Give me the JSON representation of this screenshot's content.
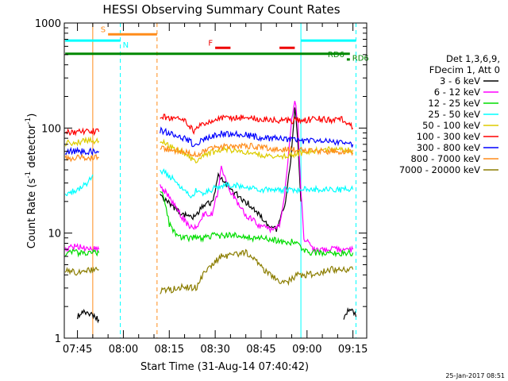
{
  "chart_data": {
    "type": "line",
    "title": "HESSI Observing Summary Count Rates",
    "xlabel": "Start Time (31-Aug-14 07:40:42)",
    "ylabel": "Count Rate (s",
    "ylabel_sup1": "-1",
    "ylabel_mid": " detector",
    "ylabel_sup2": "-1",
    "ylabel_end": ")",
    "y_scale": "log",
    "ylim": [
      1,
      1000
    ],
    "xlim": [
      "07:40:42",
      "09:19:30"
    ],
    "x_ticks": [
      "07:45",
      "08:00",
      "08:15",
      "08:30",
      "08:45",
      "09:00",
      "09:15"
    ],
    "y_ticks": [
      {
        "value": 1,
        "label": "1"
      },
      {
        "value": 10,
        "label": "10"
      },
      {
        "value": 100,
        "label": "100"
      },
      {
        "value": 1000,
        "label": "1000"
      }
    ],
    "legend_header": [
      "Det 1,3,6,9,",
      "FDecim 1, Att 0"
    ],
    "series": [
      {
        "name": "3 - 6 keV",
        "color": "#000000",
        "segments": [
          [
            [
              "07:45",
              1.6
            ],
            [
              "07:48",
              1.8
            ],
            [
              "07:52",
              1.5
            ]
          ],
          [
            [
              "08:12",
              23
            ],
            [
              "08:16",
              18
            ],
            [
              "08:20",
              15
            ],
            [
              "08:23",
              14
            ],
            [
              "08:26",
              18
            ],
            [
              "08:29",
              20
            ],
            [
              "08:31",
              35
            ],
            [
              "08:34",
              28
            ],
            [
              "08:38",
              22
            ],
            [
              "08:42",
              18
            ],
            [
              "08:46",
              13
            ],
            [
              "08:50",
              11
            ],
            [
              "08:53",
              20
            ],
            [
              "08:55",
              60
            ],
            [
              "08:56",
              160
            ],
            [
              "08:57",
              80
            ],
            [
              "08:58",
              20
            ]
          ],
          [
            [
              "09:12",
              1.5
            ],
            [
              "09:14",
              2
            ],
            [
              "09:16",
              1.6
            ]
          ]
        ]
      },
      {
        "name": "6 - 12 keV",
        "color": "#ff00ff",
        "segments": [
          [
            [
              "07:41",
              7
            ],
            [
              "07:45",
              7.5
            ],
            [
              "07:48",
              7
            ],
            [
              "07:52",
              7
            ]
          ],
          [
            [
              "08:12",
              28
            ],
            [
              "08:15",
              22
            ],
            [
              "08:18",
              16
            ],
            [
              "08:21",
              12
            ],
            [
              "08:24",
              11
            ],
            [
              "08:26",
              15
            ],
            [
              "08:29",
              15
            ],
            [
              "08:31",
              26
            ],
            [
              "08:32",
              42
            ],
            [
              "08:34",
              28
            ],
            [
              "08:37",
              20
            ],
            [
              "08:40",
              15
            ],
            [
              "08:44",
              12
            ],
            [
              "08:48",
              11
            ],
            [
              "08:51",
              12
            ],
            [
              "08:53",
              28
            ],
            [
              "08:55",
              120
            ],
            [
              "08:56",
              190
            ],
            [
              "08:57",
              110
            ],
            [
              "08:58",
              25
            ],
            [
              "08:59",
              9
            ],
            [
              "09:02",
              7
            ],
            [
              "09:06",
              7
            ],
            [
              "09:10",
              7
            ],
            [
              "09:15",
              7
            ]
          ]
        ]
      },
      {
        "name": "12 - 25 keV",
        "color": "#00dd00",
        "segments": [
          [
            [
              "07:41",
              6.5
            ],
            [
              "07:45",
              6.5
            ],
            [
              "07:48",
              6.5
            ],
            [
              "07:52",
              6.5
            ]
          ],
          [
            [
              "08:12",
              26
            ],
            [
              "08:13",
              24
            ],
            [
              "08:15",
              12
            ],
            [
              "08:18",
              9
            ],
            [
              "08:22",
              9
            ],
            [
              "08:26",
              9
            ],
            [
              "08:30",
              9.5
            ],
            [
              "08:34",
              9.5
            ],
            [
              "08:38",
              9.5
            ],
            [
              "08:42",
              9
            ],
            [
              "08:46",
              9
            ],
            [
              "08:50",
              8.5
            ],
            [
              "08:54",
              8
            ],
            [
              "08:56",
              8.5
            ],
            [
              "08:58",
              7
            ],
            [
              "09:01",
              6.5
            ],
            [
              "09:05",
              6.5
            ],
            [
              "09:10",
              6.5
            ],
            [
              "09:15",
              6.5
            ]
          ]
        ]
      },
      {
        "name": "25 - 50 keV",
        "color": "#00ffff",
        "segments": [
          [
            [
              "07:41",
              23
            ],
            [
              "07:45",
              26
            ],
            [
              "07:48",
              30
            ],
            [
              "07:50",
              36
            ]
          ],
          [
            [
              "08:12",
              40
            ],
            [
              "08:16",
              33
            ],
            [
              "08:20",
              25
            ],
            [
              "08:22",
              22
            ],
            [
              "08:24",
              26
            ],
            [
              "08:26",
              24
            ],
            [
              "08:30",
              27
            ],
            [
              "08:34",
              29
            ],
            [
              "08:38",
              28
            ],
            [
              "08:42",
              27
            ],
            [
              "08:46",
              26
            ],
            [
              "08:50",
              26
            ],
            [
              "08:54",
              26
            ],
            [
              "08:58",
              26
            ],
            [
              "09:02",
              26
            ],
            [
              "09:06",
              26
            ],
            [
              "09:10",
              26
            ],
            [
              "09:15",
              26
            ]
          ]
        ]
      },
      {
        "name": "50 - 100 keV",
        "color": "#ddcc00",
        "segments": [
          [
            [
              "07:41",
              72
            ],
            [
              "07:45",
              74
            ],
            [
              "07:48",
              75
            ],
            [
              "07:52",
              75
            ]
          ],
          [
            [
              "08:12",
              75
            ],
            [
              "08:16",
              66
            ],
            [
              "08:20",
              58
            ],
            [
              "08:23",
              48
            ],
            [
              "08:25",
              52
            ],
            [
              "08:28",
              58
            ],
            [
              "08:32",
              62
            ],
            [
              "08:36",
              62
            ],
            [
              "08:40",
              60
            ],
            [
              "08:44",
              56
            ],
            [
              "08:48",
              54
            ],
            [
              "08:52",
              53
            ],
            [
              "08:56",
              56
            ],
            [
              "09:00",
              60
            ],
            [
              "09:04",
              62
            ],
            [
              "09:08",
              62
            ],
            [
              "09:12",
              62
            ],
            [
              "09:15",
              62
            ]
          ]
        ]
      },
      {
        "name": "100 - 300 keV",
        "color": "#ff0000",
        "segments": [
          [
            [
              "07:41",
              90
            ],
            [
              "07:45",
              92
            ],
            [
              "07:48",
              95
            ],
            [
              "07:52",
              92
            ]
          ],
          [
            [
              "08:12",
              130
            ],
            [
              "08:16",
              125
            ],
            [
              "08:20",
              115
            ],
            [
              "08:23",
              95
            ],
            [
              "08:25",
              110
            ],
            [
              "08:28",
              115
            ],
            [
              "08:32",
              125
            ],
            [
              "08:36",
              125
            ],
            [
              "08:40",
              125
            ],
            [
              "08:44",
              122
            ],
            [
              "08:48",
              120
            ],
            [
              "08:52",
              118
            ],
            [
              "08:56",
              118
            ],
            [
              "09:00",
              120
            ],
            [
              "09:04",
              122
            ],
            [
              "09:08",
              120
            ],
            [
              "09:12",
              120
            ],
            [
              "09:15",
              100
            ]
          ]
        ]
      },
      {
        "name": "300 - 800 keV",
        "color": "#0000ff",
        "segments": [
          [
            [
              "07:41",
              60
            ],
            [
              "07:45",
              60
            ],
            [
              "07:48",
              60
            ],
            [
              "07:52",
              60
            ]
          ],
          [
            [
              "08:12",
              95
            ],
            [
              "08:16",
              88
            ],
            [
              "08:20",
              80
            ],
            [
              "08:23",
              70
            ],
            [
              "08:25",
              75
            ],
            [
              "08:28",
              82
            ],
            [
              "08:32",
              88
            ],
            [
              "08:36",
              88
            ],
            [
              "08:40",
              86
            ],
            [
              "08:44",
              82
            ],
            [
              "08:48",
              80
            ],
            [
              "08:52",
              78
            ],
            [
              "08:56",
              76
            ],
            [
              "09:00",
              75
            ],
            [
              "09:04",
              74
            ],
            [
              "09:08",
              74
            ],
            [
              "09:12",
              72
            ],
            [
              "09:15",
              70
            ]
          ]
        ]
      },
      {
        "name": "800 - 7000 keV",
        "color": "#ff8c1a",
        "segments": [
          [
            [
              "07:41",
              52
            ],
            [
              "07:45",
              52
            ],
            [
              "07:48",
              53
            ],
            [
              "07:52",
              52
            ]
          ],
          [
            [
              "08:12",
              65
            ],
            [
              "08:16",
              62
            ],
            [
              "08:20",
              60
            ],
            [
              "08:23",
              56
            ],
            [
              "08:25",
              58
            ],
            [
              "08:28",
              62
            ],
            [
              "08:32",
              66
            ],
            [
              "08:36",
              68
            ],
            [
              "08:40",
              68
            ],
            [
              "08:44",
              66
            ],
            [
              "08:48",
              64
            ],
            [
              "08:52",
              62
            ],
            [
              "08:56",
              62
            ],
            [
              "09:00",
              62
            ],
            [
              "09:04",
              60
            ],
            [
              "09:08",
              60
            ],
            [
              "09:12",
              60
            ],
            [
              "09:15",
              58
            ]
          ]
        ]
      },
      {
        "name": "7000 - 20000 keV",
        "color": "#8b7d00",
        "segments": [
          [
            [
              "07:41",
              4.5
            ],
            [
              "07:45",
              4.2
            ],
            [
              "07:48",
              4.5
            ],
            [
              "07:52",
              4.5
            ]
          ],
          [
            [
              "08:12",
              2.8
            ],
            [
              "08:16",
              2.9
            ],
            [
              "08:20",
              3.1
            ],
            [
              "08:24",
              3.0
            ],
            [
              "08:26",
              4.0
            ],
            [
              "08:29",
              5.0
            ],
            [
              "08:32",
              6.0
            ],
            [
              "08:36",
              6.2
            ],
            [
              "08:40",
              6.5
            ],
            [
              "08:43",
              5.5
            ],
            [
              "08:46",
              4.5
            ],
            [
              "08:50",
              3.6
            ],
            [
              "08:53",
              3.3
            ],
            [
              "08:57",
              4.0
            ],
            [
              "09:00",
              4.0
            ],
            [
              "09:04",
              4.2
            ],
            [
              "09:08",
              4.5
            ],
            [
              "09:12",
              4.5
            ],
            [
              "09:15",
              4.5
            ]
          ]
        ]
      }
    ],
    "vlines": [
      {
        "x": "07:50",
        "color": "#ff8c1a",
        "style": "solid"
      },
      {
        "x": "07:59",
        "color": "#00ffff",
        "style": "dashed"
      },
      {
        "x": "08:11",
        "color": "#ff8c1a",
        "style": "dashed"
      },
      {
        "x": "08:58",
        "color": "#00ffff",
        "style": "solid"
      },
      {
        "x": "09:16",
        "color": "#00ffff",
        "style": "dashed"
      }
    ],
    "flag_bars": [
      {
        "label": "S",
        "color": "#ff8c1a",
        "y": 780,
        "x0": "07:55",
        "x1": "08:11",
        "label_side": "left"
      },
      {
        "label": "N",
        "color": "#00ffff",
        "y": 680,
        "x0": "07:41",
        "x1": "07:59",
        "label_side": "right"
      },
      {
        "label": "F",
        "color": "#ee0000",
        "y": 580,
        "x0": "08:30",
        "x1": "08:35",
        "label_side": "left"
      },
      {
        "label": "",
        "color": "#ee0000",
        "y": 580,
        "x0": "08:51",
        "x1": "08:56",
        "label_side": "none"
      },
      {
        "label": "",
        "color": "#00ffff",
        "y": 680,
        "x0": "08:58",
        "x1": "09:16",
        "label_side": "none"
      },
      {
        "label": "RD6",
        "color": "#008800",
        "y": 510,
        "x0": "07:41",
        "x1": "09:14",
        "label_side": "right"
      },
      {
        "label": "RD6",
        "color": "#008800",
        "y": 450,
        "x0": "09:13",
        "x1": "09:14",
        "label_side": "left"
      }
    ],
    "footer_timestamp": "25-Jan-2017 08:51"
  }
}
